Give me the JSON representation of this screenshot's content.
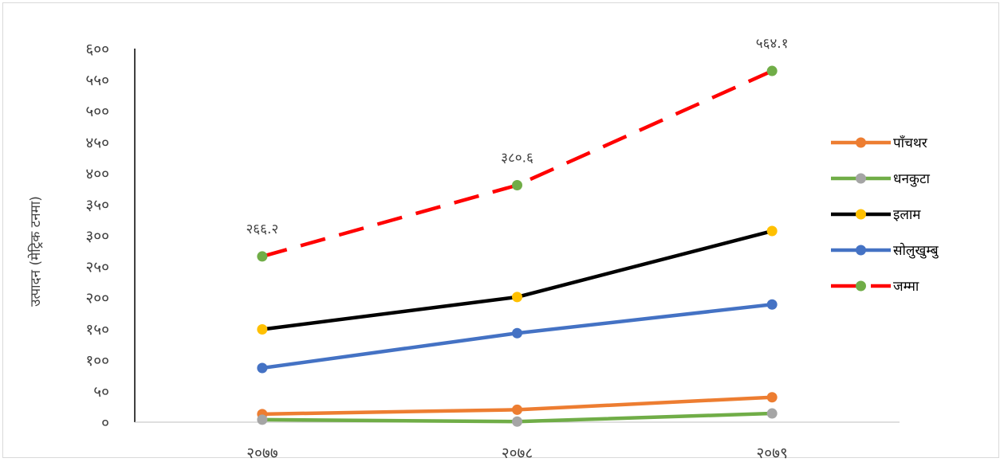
{
  "chart_data": {
    "type": "line",
    "title": "",
    "xlabel": "",
    "ylabel": "उत्पादन (मेट्रिक टनमा)",
    "ylim": [
      0,
      600
    ],
    "yticks": [
      0,
      50,
      100,
      150,
      200,
      250,
      300,
      350,
      400,
      450,
      500,
      550,
      600
    ],
    "ytick_labels": [
      "०",
      "५०",
      "१००",
      "१५०",
      "२००",
      "२५०",
      "३००",
      "३५०",
      "४००",
      "४५०",
      "५००",
      "५५०",
      "६००"
    ],
    "categories": [
      "२०७७",
      "२०७८",
      "२०७९"
    ],
    "grid": false,
    "legend_position": "right",
    "series": [
      {
        "name": "पाँचथर",
        "values": [
          13,
          20,
          40
        ],
        "line_color": "#ED7D31",
        "marker_color": "#ED7D31",
        "dashed": false
      },
      {
        "name": "धनकुटा",
        "values": [
          4,
          1,
          14
        ],
        "line_color": "#70AD47",
        "marker_color": "#A5A5A5",
        "dashed": false
      },
      {
        "name": "इलाम",
        "values": [
          149,
          201,
          307
        ],
        "line_color": "#000000",
        "marker_color": "#FFC000",
        "dashed": false
      },
      {
        "name": "सोलुखुम्बु",
        "values": [
          87,
          143,
          189
        ],
        "line_color": "#4472C4",
        "marker_color": "#4472C4",
        "dashed": false
      },
      {
        "name": "जम्मा",
        "values": [
          266.2,
          380.6,
          564.1
        ],
        "line_color": "#FF0000",
        "marker_color": "#70AD47",
        "dashed": true,
        "data_labels": [
          "२६६.२",
          "३८०.६",
          "५६४.१"
        ]
      }
    ]
  }
}
